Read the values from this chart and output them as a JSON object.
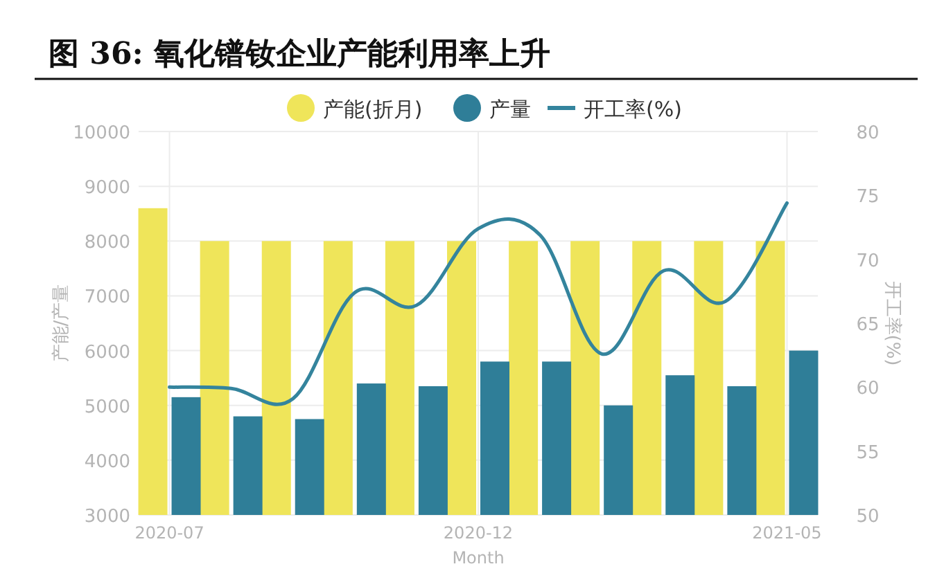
{
  "chart_data": {
    "type": "bar",
    "title": "图 36: 氧化镨钕企业产能利用率上升",
    "xlabel": "Month",
    "ylabel": "产能/产量",
    "y2label": "开工率(%)",
    "categories": [
      "2020-07",
      null,
      null,
      null,
      null,
      "2020-12",
      null,
      null,
      null,
      null,
      "2021-05"
    ],
    "series": [
      {
        "name": "产能(折月)",
        "color": "#efe55a",
        "values": [
          8600,
          8000,
          8000,
          8000,
          8000,
          8000,
          8000,
          8000,
          8000,
          8000,
          8000
        ]
      },
      {
        "name": "产量",
        "color": "#2f7e98",
        "values": [
          5150,
          4800,
          4750,
          5400,
          5350,
          5800,
          5800,
          5000,
          5550,
          5350,
          6000
        ]
      },
      {
        "name": "开工率(%)",
        "type": "line",
        "axis": "y2",
        "color": "#34849d",
        "values": [
          60,
          59.9,
          59.1,
          67.4,
          66.4,
          72.4,
          71.9,
          62.6,
          69.1,
          66.7,
          74.4
        ]
      }
    ],
    "ylim": [
      3000,
      10000
    ],
    "yticks": [
      3000,
      4000,
      5000,
      6000,
      7000,
      8000,
      9000,
      10000
    ],
    "y2lim": [
      50,
      80
    ],
    "y2ticks": [
      50,
      55,
      60,
      65,
      70,
      75,
      80
    ],
    "grid": true,
    "legend": "top"
  }
}
